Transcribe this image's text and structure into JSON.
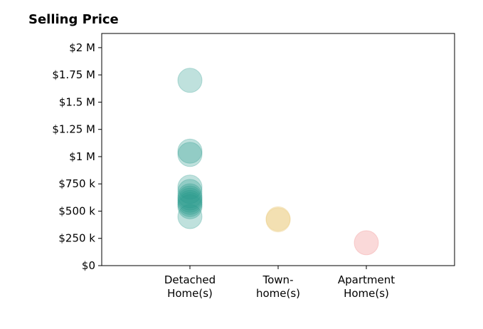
{
  "chart_data": {
    "type": "scatter",
    "title": "Selling Price",
    "xlabel": "",
    "ylabel": "",
    "ylim": [
      0,
      2130000
    ],
    "y_ticks": [
      {
        "value": 0,
        "label": "$0"
      },
      {
        "value": 250000,
        "label": "$250 k"
      },
      {
        "value": 500000,
        "label": "$500 k"
      },
      {
        "value": 750000,
        "label": "$750 k"
      },
      {
        "value": 1000000,
        "label": "$1 M"
      },
      {
        "value": 1250000,
        "label": "$1.25 M"
      },
      {
        "value": 1500000,
        "label": "$1.5 M"
      },
      {
        "value": 1750000,
        "label": "$1.75 M"
      },
      {
        "value": 2000000,
        "label": "$2 M"
      }
    ],
    "categories": [
      {
        "lines": [
          "Detached",
          "Home(s)"
        ]
      },
      {
        "lines": [
          "Town-",
          "home(s)"
        ]
      },
      {
        "lines": [
          "Apartment",
          "Home(s)"
        ]
      }
    ],
    "series": [
      {
        "category_index": 0,
        "color": "#2a9d8f",
        "values": [
          1700000,
          1050000,
          1020000,
          720000,
          680000,
          640000,
          620000,
          600000,
          580000,
          560000,
          540000,
          450000
        ]
      },
      {
        "category_index": 1,
        "color": "#e9c46a",
        "values": [
          430000,
          420000
        ]
      },
      {
        "category_index": 2,
        "color": "#f08080",
        "values": [
          210000
        ]
      }
    ],
    "grid": false,
    "legend": "none"
  }
}
